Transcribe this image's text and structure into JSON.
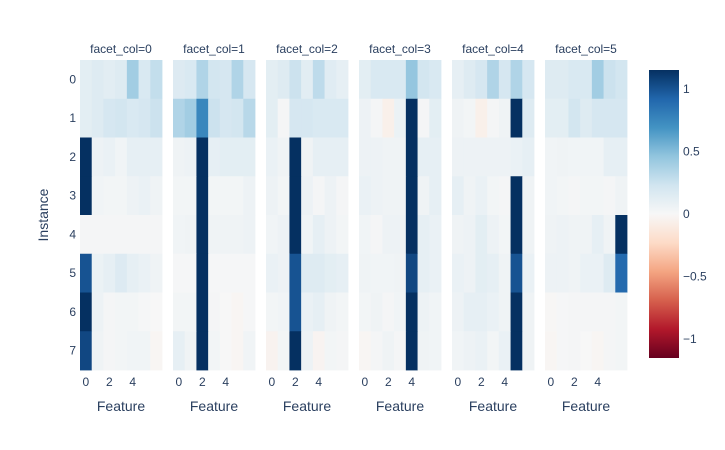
{
  "chart_data": {
    "type": "heatmap",
    "xlabel": "Feature",
    "ylabel": "Instance",
    "x_ticks": [
      0,
      2,
      4
    ],
    "y_categories": [
      "0",
      "1",
      "2",
      "3",
      "4",
      "5",
      "6",
      "7"
    ],
    "colorscale": "RdBu",
    "zlim": [
      -1.15,
      1.15
    ],
    "colorbar": {
      "ticks": [
        1,
        0.5,
        0,
        -0.5,
        -1
      ],
      "tick_labels": [
        "1",
        "0.5",
        "0",
        "−0.5",
        "−1"
      ]
    },
    "facets": [
      {
        "title": "facet_col=0",
        "z": [
          [
            0.12,
            0.15,
            0.13,
            0.15,
            0.4,
            0.18,
            0.28
          ],
          [
            0.12,
            0.15,
            0.2,
            0.22,
            0.18,
            0.2,
            0.25
          ],
          [
            1.15,
            0.06,
            0.08,
            0.04,
            0.1,
            0.1,
            0.1
          ],
          [
            1.15,
            0.04,
            0.03,
            0.03,
            0.06,
            0.08,
            0.05
          ],
          [
            0.02,
            0.02,
            0.02,
            0.02,
            0.02,
            0.02,
            0.02
          ],
          [
            1.0,
            0.07,
            0.1,
            0.16,
            0.1,
            0.08,
            0.05
          ],
          [
            1.15,
            0.06,
            0.02,
            0.03,
            0.03,
            0.01,
            0.0
          ],
          [
            1.05,
            0.05,
            0.02,
            0.03,
            0.04,
            0.04,
            -0.02
          ]
        ]
      },
      {
        "title": "facet_col=1",
        "z": [
          [
            0.16,
            0.18,
            0.35,
            0.22,
            0.2,
            0.35,
            0.2
          ],
          [
            0.35,
            0.4,
            0.75,
            0.25,
            0.2,
            0.22,
            0.32
          ],
          [
            0.05,
            0.06,
            1.15,
            0.1,
            0.12,
            0.12,
            0.12
          ],
          [
            0.03,
            0.03,
            1.15,
            0.03,
            0.03,
            0.03,
            0.06
          ],
          [
            0.04,
            0.05,
            1.15,
            0.05,
            0.05,
            0.05,
            0.06
          ],
          [
            0.01,
            0.01,
            1.15,
            0.01,
            0.01,
            0.01,
            0.01
          ],
          [
            0.03,
            0.03,
            1.15,
            0.02,
            0.0,
            -0.02,
            0.01
          ],
          [
            0.1,
            0.05,
            1.15,
            0.03,
            0.0,
            -0.02,
            0.04
          ]
        ]
      },
      {
        "title": "facet_col=2",
        "z": [
          [
            0.12,
            0.15,
            0.25,
            0.13,
            0.3,
            0.14,
            0.1
          ],
          [
            0.12,
            0.02,
            0.2,
            0.2,
            0.18,
            0.18,
            0.18
          ],
          [
            0.08,
            0.05,
            1.15,
            0.05,
            0.1,
            0.1,
            0.1
          ],
          [
            0.06,
            0.03,
            1.15,
            0.06,
            0.02,
            0.06,
            0.02
          ],
          [
            0.04,
            0.06,
            1.15,
            0.04,
            0.1,
            0.06,
            0.03
          ],
          [
            0.08,
            0.06,
            1.0,
            0.15,
            0.15,
            0.12,
            0.1
          ],
          [
            0.03,
            0.04,
            1.0,
            0.08,
            0.1,
            0.05,
            0.03
          ],
          [
            -0.04,
            0.03,
            1.15,
            0.06,
            -0.03,
            0.03,
            0.02
          ]
        ]
      },
      {
        "title": "facet_col=3",
        "z": [
          [
            0.12,
            0.18,
            0.18,
            0.18,
            0.45,
            0.22,
            0.18
          ],
          [
            0.06,
            0.02,
            -0.06,
            0.07,
            1.15,
            0.02,
            0.12
          ],
          [
            0.06,
            0.06,
            0.05,
            0.05,
            1.15,
            0.1,
            0.1
          ],
          [
            0.08,
            0.06,
            0.05,
            0.05,
            1.15,
            0.05,
            0.1
          ],
          [
            0.04,
            0.02,
            0.06,
            0.06,
            1.15,
            0.1,
            0.08
          ],
          [
            0.05,
            0.04,
            0.04,
            0.05,
            1.05,
            0.1,
            0.08
          ],
          [
            0.03,
            0.05,
            0.02,
            0.04,
            1.15,
            0.06,
            0.04
          ],
          [
            -0.02,
            0.02,
            0.05,
            0.02,
            1.15,
            0.05,
            0.04
          ]
        ]
      },
      {
        "title": "facet_col=4",
        "z": [
          [
            0.1,
            0.15,
            0.2,
            0.35,
            0.2,
            0.35,
            0.2
          ],
          [
            0.05,
            0.03,
            -0.06,
            0.02,
            0.05,
            1.15,
            0.15
          ],
          [
            0.06,
            0.06,
            0.06,
            0.06,
            0.06,
            0.08,
            0.1
          ],
          [
            0.1,
            0.05,
            0.08,
            0.03,
            0.02,
            1.15,
            0.05
          ],
          [
            0.05,
            0.06,
            0.12,
            0.06,
            0.03,
            1.15,
            0.05
          ],
          [
            0.08,
            0.06,
            0.12,
            0.1,
            0.05,
            1.0,
            0.08
          ],
          [
            0.06,
            0.1,
            0.1,
            0.08,
            0.05,
            1.15,
            0.05
          ],
          [
            0.04,
            0.06,
            0.08,
            0.03,
            0.08,
            1.15,
            0.05
          ]
        ]
      },
      {
        "title": "facet_col=5",
        "z": [
          [
            0.15,
            0.15,
            0.18,
            0.18,
            0.4,
            0.25,
            0.22
          ],
          [
            0.12,
            0.12,
            0.22,
            0.15,
            0.2,
            0.2,
            0.2
          ],
          [
            0.04,
            0.05,
            0.04,
            0.04,
            0.04,
            0.1,
            0.1
          ],
          [
            0.04,
            0.03,
            0.02,
            0.03,
            0.03,
            0.02,
            0.05
          ],
          [
            0.05,
            0.06,
            0.05,
            0.05,
            0.1,
            0.05,
            1.15
          ],
          [
            0.06,
            0.06,
            0.05,
            0.08,
            0.08,
            0.15,
            0.9
          ],
          [
            -0.01,
            0.01,
            0.02,
            0.02,
            0.02,
            0.02,
            0.03
          ],
          [
            -0.02,
            0.01,
            0.02,
            0.0,
            -0.02,
            0.02,
            0.03
          ]
        ]
      }
    ]
  }
}
